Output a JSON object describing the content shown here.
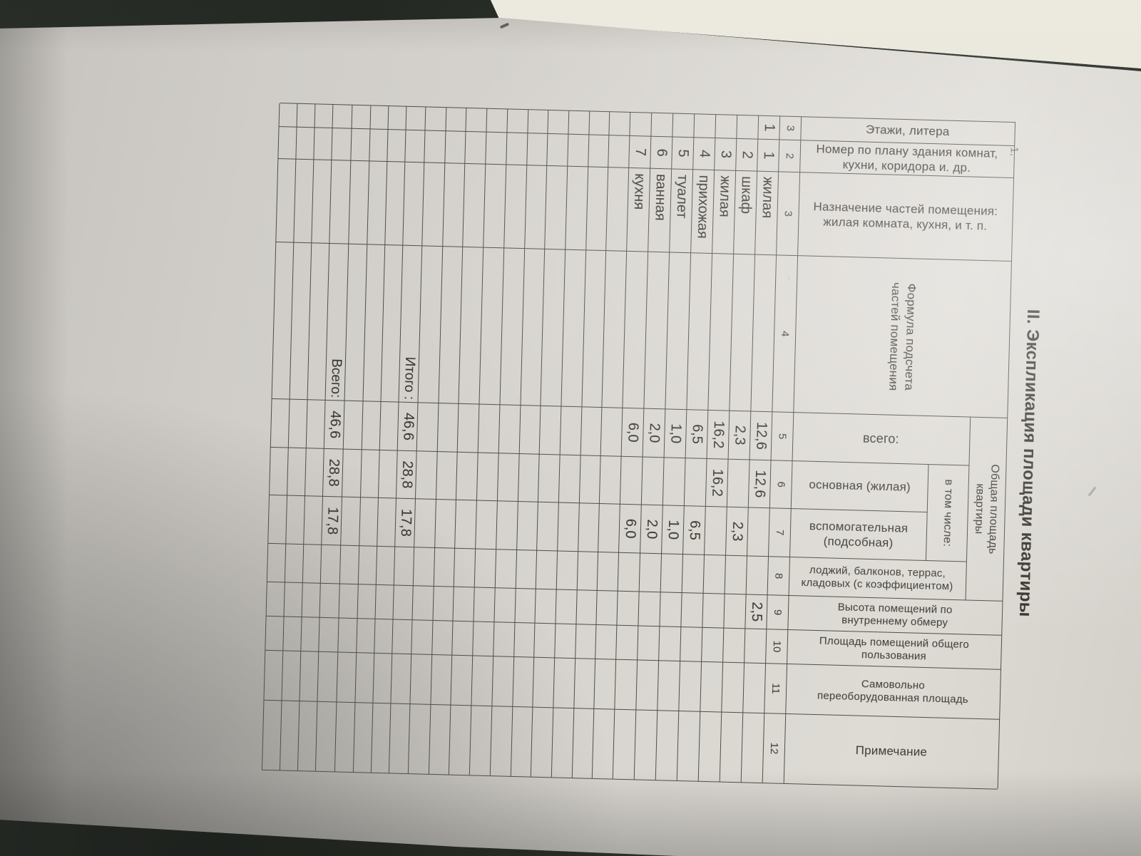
{
  "document": {
    "title": "II. Экспликация площади квартиры",
    "columns": [
      {
        "num": "3",
        "header": "Этажи, литера"
      },
      {
        "num": "2",
        "header": "Номер по плану здания комнат,\nкухни, коридора и. др."
      },
      {
        "num": "3",
        "header": "Назначение частей помещения:\nжилая комната, кухня, и т. п."
      },
      {
        "num": "4",
        "header": "Формула подсчета\nчастей помещения"
      },
      {
        "num": "5",
        "header": "всего:"
      },
      {
        "num": "6",
        "header": "основная (жилая)"
      },
      {
        "num": "7",
        "header": "вспомогательная\n(подсобная)"
      },
      {
        "num": "8",
        "header": "лоджий, балконов, террас,\nкладовых (с коэффициентом)"
      },
      {
        "num": "9",
        "header": "Высота помещений по\nвнутреннему обмеру"
      },
      {
        "num": "10",
        "header": "Площадь помещений общего\nпользования"
      },
      {
        "num": "11",
        "header": "Самовольно\nпереоборудованная площадь"
      },
      {
        "num": "12",
        "header": "Примечание"
      }
    ],
    "group_headers": {
      "total_area": "Общая площадь\nквартиры",
      "including": "в том числе:"
    },
    "rows": [
      {
        "floor": "1",
        "plan_no": "1",
        "purpose": "жилая",
        "total": "12,6",
        "living": "12,6",
        "aux": "",
        "height": "2,5"
      },
      {
        "floor": "",
        "plan_no": "2",
        "purpose": "шкаф",
        "total": "2,3",
        "living": "",
        "aux": "2,3",
        "height": ""
      },
      {
        "floor": "",
        "plan_no": "3",
        "purpose": "жилая",
        "total": "16,2",
        "living": "16,2",
        "aux": "",
        "height": ""
      },
      {
        "floor": "",
        "plan_no": "4",
        "purpose": "прихожая",
        "total": "6,5",
        "living": "",
        "aux": "6,5",
        "height": ""
      },
      {
        "floor": "",
        "plan_no": "5",
        "purpose": "туалет",
        "total": "1,0",
        "living": "",
        "aux": "1,0",
        "height": ""
      },
      {
        "floor": "",
        "plan_no": "6",
        "purpose": "ванная",
        "total": "2,0",
        "living": "",
        "aux": "2,0",
        "height": ""
      },
      {
        "floor": "",
        "plan_no": "7",
        "purpose": "кухня",
        "total": "6,0",
        "living": "",
        "aux": "6,0",
        "height": ""
      }
    ],
    "totals": {
      "itogo_label": "Итого :",
      "itogo": {
        "total": "46,6",
        "living": "28,8",
        "aux": "17,8"
      },
      "vsego_label": "Всего:",
      "vsego": {
        "total": "46,6",
        "living": "28,8",
        "aux": "17,8"
      }
    },
    "layout_counts": {
      "empty_rows_after_data": 10,
      "empty_rows_between_totals": 3,
      "empty_rows_after_vsego": 3
    },
    "pencil_mark": "1,"
  },
  "colors": {
    "paper": "#d7d4cf",
    "background": "#2e342c",
    "line": "#504e49",
    "ink": "#3b3a35"
  }
}
